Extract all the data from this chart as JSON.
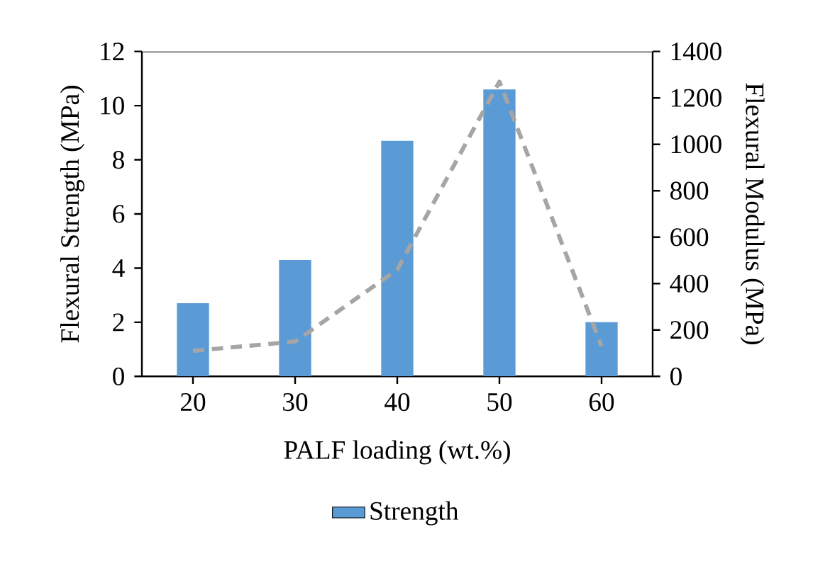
{
  "chart_data": {
    "type": "bar",
    "categories": [
      "20",
      "30",
      "40",
      "50",
      "60"
    ],
    "series": [
      {
        "name": "Strength",
        "color": "#5b9bd5",
        "values": [
          2.7,
          4.3,
          8.7,
          10.6,
          2.0
        ]
      },
      {
        "type": "line",
        "axis": "y2",
        "color": "#a5a5a5",
        "line_style": "dashed",
        "marker": "none",
        "values": [
          110,
          150,
          460,
          1270,
          130
        ]
      }
    ],
    "xlabel": "PALF loading (wt.%)",
    "ylabel": "Flexural Strength (MPa)",
    "y2label": "Flexural Modulus (MPa)",
    "ylim": [
      0,
      12
    ],
    "yticks": [
      0,
      2,
      4,
      6,
      8,
      10,
      12
    ],
    "y2lim": [
      0,
      1400
    ],
    "y2ticks": [
      0,
      200,
      400,
      600,
      800,
      1000,
      1200,
      1400
    ],
    "legend": "bottom"
  }
}
